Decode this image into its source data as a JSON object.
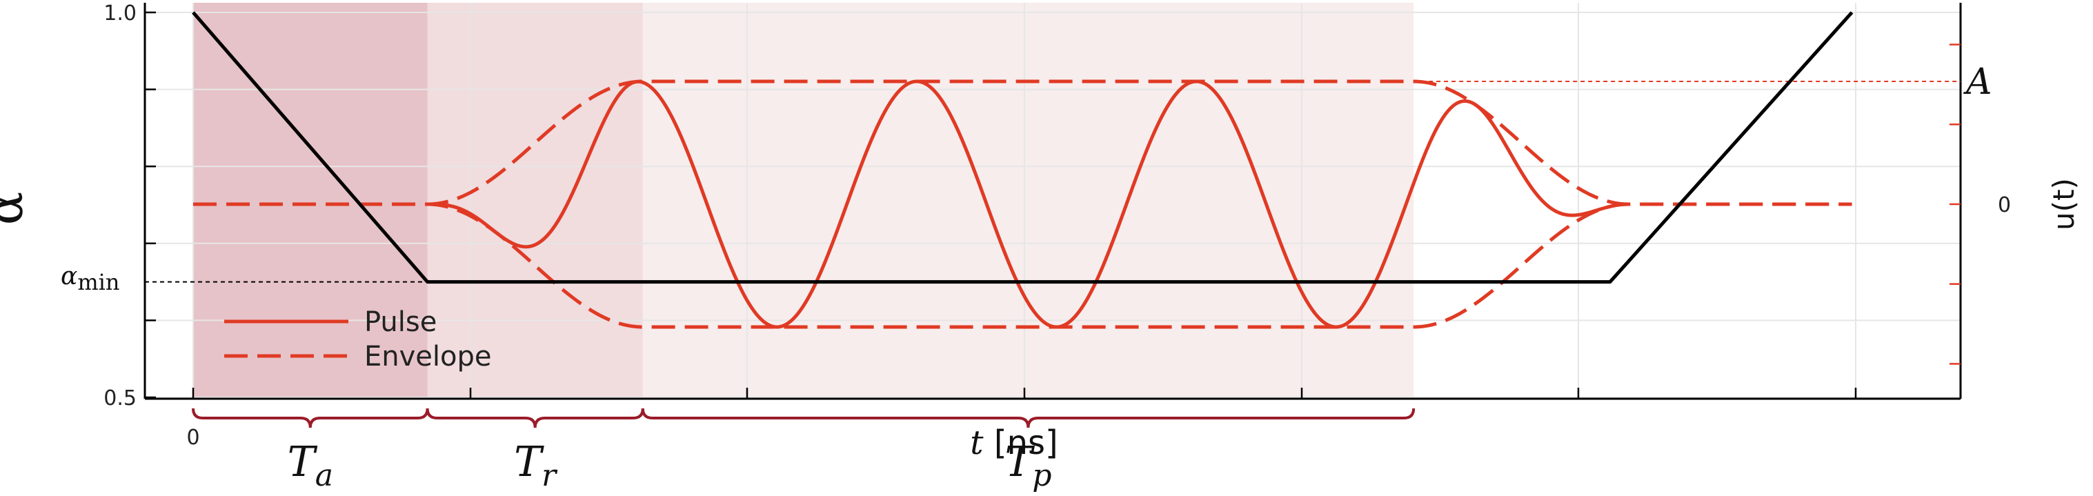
{
  "chart_data": {
    "type": "line",
    "x_range": [
      0,
      2.2
    ],
    "left_axis": {
      "label": "α",
      "ylim": [
        0.5,
        1.0
      ],
      "tick_labels": [
        {
          "value": 1.0,
          "label": "1.0"
        },
        {
          "value": 0.5,
          "label": "0.5"
        }
      ],
      "unlabeled_ticks": [
        0.6,
        0.7,
        0.8,
        0.9
      ],
      "alpha_min": {
        "value": 0.65,
        "label_main": "α",
        "label_sub": "min"
      }
    },
    "right_axis": {
      "label": "u(t)",
      "ylim": [
        -1.6,
        1.6
      ],
      "ticks": [
        -1.3,
        -0.65,
        0,
        0.65,
        1.3
      ],
      "labels": [
        {
          "value": 0,
          "label": "0"
        },
        {
          "value": 1,
          "label": "A"
        }
      ],
      "amplitude_ref": 1
    },
    "x_axis": {
      "label_italic": "t",
      "label_rest": " [ns]",
      "tick_labels": [
        {
          "value": 0,
          "label": "0"
        }
      ],
      "unlabeled_ticks": [
        0.367,
        0.733,
        1.1,
        1.467,
        1.833,
        2.2
      ]
    },
    "alpha_schedule": {
      "name": "α",
      "x": [
        0,
        0.31,
        1.875,
        2.195
      ],
      "y": [
        1.0,
        0.65,
        0.65,
        1.0
      ]
    },
    "pulse": {
      "t_start": 0.31,
      "t_rise_end": 0.595,
      "t_fall_start": 1.615,
      "t_end": 1.9,
      "t_signal_end": 2.195,
      "frequency": 2.7027,
      "phase_offset": 0.5
    },
    "regions": [
      {
        "name": "Ta",
        "label_main": "T",
        "label_sub": "a",
        "x": [
          0,
          0.31
        ],
        "color": "#d9a3ab",
        "opacity": 0.65
      },
      {
        "name": "Tr",
        "label_main": "T",
        "label_sub": "r",
        "x": [
          0.31,
          0.595
        ],
        "color": "#e7c4c8",
        "opacity": 0.6
      },
      {
        "name": "Tp",
        "label_main": "T",
        "label_sub": "p",
        "x": [
          0.595,
          1.615
        ],
        "color": "#f3e5e6",
        "opacity": 0.7
      }
    ],
    "legend": {
      "position": "bottom-left",
      "entries": [
        {
          "label": "Pulse",
          "style": "solid"
        },
        {
          "label": "Envelope",
          "style": "dashed"
        }
      ]
    },
    "colors": {
      "pulse": "#e03a24",
      "alpha": "#000000",
      "brace": "#9b1c2a"
    }
  }
}
